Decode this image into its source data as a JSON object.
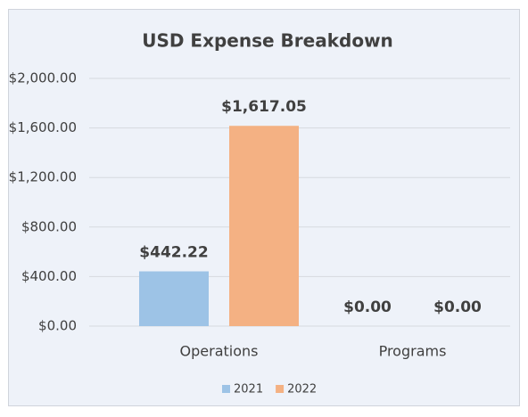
{
  "chart_data": {
    "type": "bar",
    "title": "USD Expense Breakdown",
    "categories": [
      "Operations",
      "Programs"
    ],
    "series": [
      {
        "name": "2021",
        "color": "#9dc3e6",
        "values": [
          442.22,
          0
        ],
        "value_labels": [
          "$442.22",
          "$0.00"
        ]
      },
      {
        "name": "2022",
        "color": "#f4b183",
        "values": [
          1617.05,
          0
        ],
        "value_labels": [
          "$1,617.05",
          "$0.00"
        ]
      }
    ],
    "ylim": [
      0,
      2000
    ],
    "yticks": [
      {
        "value": 0,
        "label": "$0.00"
      },
      {
        "value": 400,
        "label": "$400.00"
      },
      {
        "value": 800,
        "label": "$800.00"
      },
      {
        "value": 1200,
        "label": "$1,200.00"
      },
      {
        "value": 1600,
        "label": "$1,600.00"
      },
      {
        "value": 2000,
        "label": "$2,000.00"
      }
    ],
    "grid": true,
    "legend": "bottom"
  }
}
